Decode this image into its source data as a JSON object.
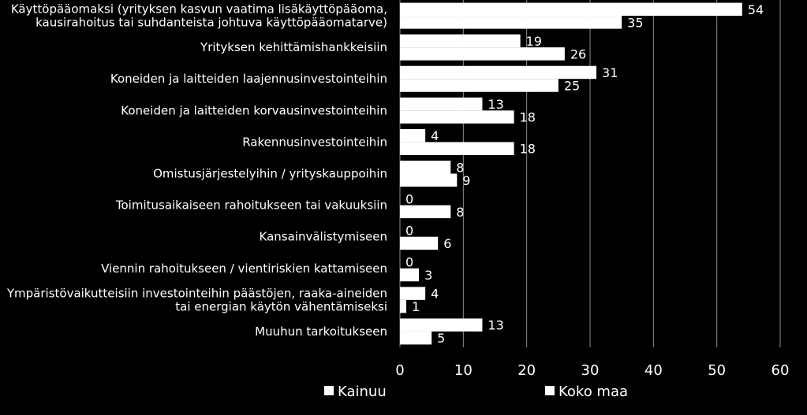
{
  "chart_data": {
    "type": "bar",
    "orientation": "horizontal",
    "categories": [
      [
        "Käyttöpääomaksi (yrityksen kasvun vaatima lisäkäyttöpääoma,",
        "kausirahoitus tai suhdanteista johtuva käyttöpääomatarve)"
      ],
      [
        "Yrityksen kehittämishankkeisiin"
      ],
      [
        "Koneiden ja laitteiden laajennusinvestointeihin"
      ],
      [
        "Koneiden ja laitteiden korvausinvestointeihin"
      ],
      [
        "Rakennusinvestointeihin"
      ],
      [
        "Omistusjärjestelyihin / yrityskauppoihin"
      ],
      [
        "Toimitusaikaiseen rahoitukseen tai vakuuksiin"
      ],
      [
        "Kansainvälistymiseen"
      ],
      [
        "Viennin rahoitukseen / vientiriskien kattamiseen"
      ],
      [
        "Ympäristövaikutteisiin investointeihin päästöjen, raaka-aineiden",
        "tai energian käytön vähentämiseksi"
      ],
      [
        "Muuhun tarkoitukseen"
      ]
    ],
    "series": [
      {
        "name": "Kainuu",
        "values": [
          54,
          19,
          31,
          13,
          4,
          8,
          0,
          0,
          0,
          4,
          13
        ]
      },
      {
        "name": "Koko maa",
        "values": [
          35,
          26,
          25,
          18,
          18,
          9,
          8,
          6,
          3,
          1,
          5
        ]
      }
    ],
    "xlim": [
      0,
      60
    ],
    "xticks": [
      0,
      10,
      20,
      30,
      40,
      50,
      60
    ],
    "grid": true,
    "legend_position": "bottom",
    "colors": {
      "background": "#000000",
      "bar": "#ffffff",
      "text": "#ffffff",
      "grid": "#8c8c8c"
    }
  }
}
